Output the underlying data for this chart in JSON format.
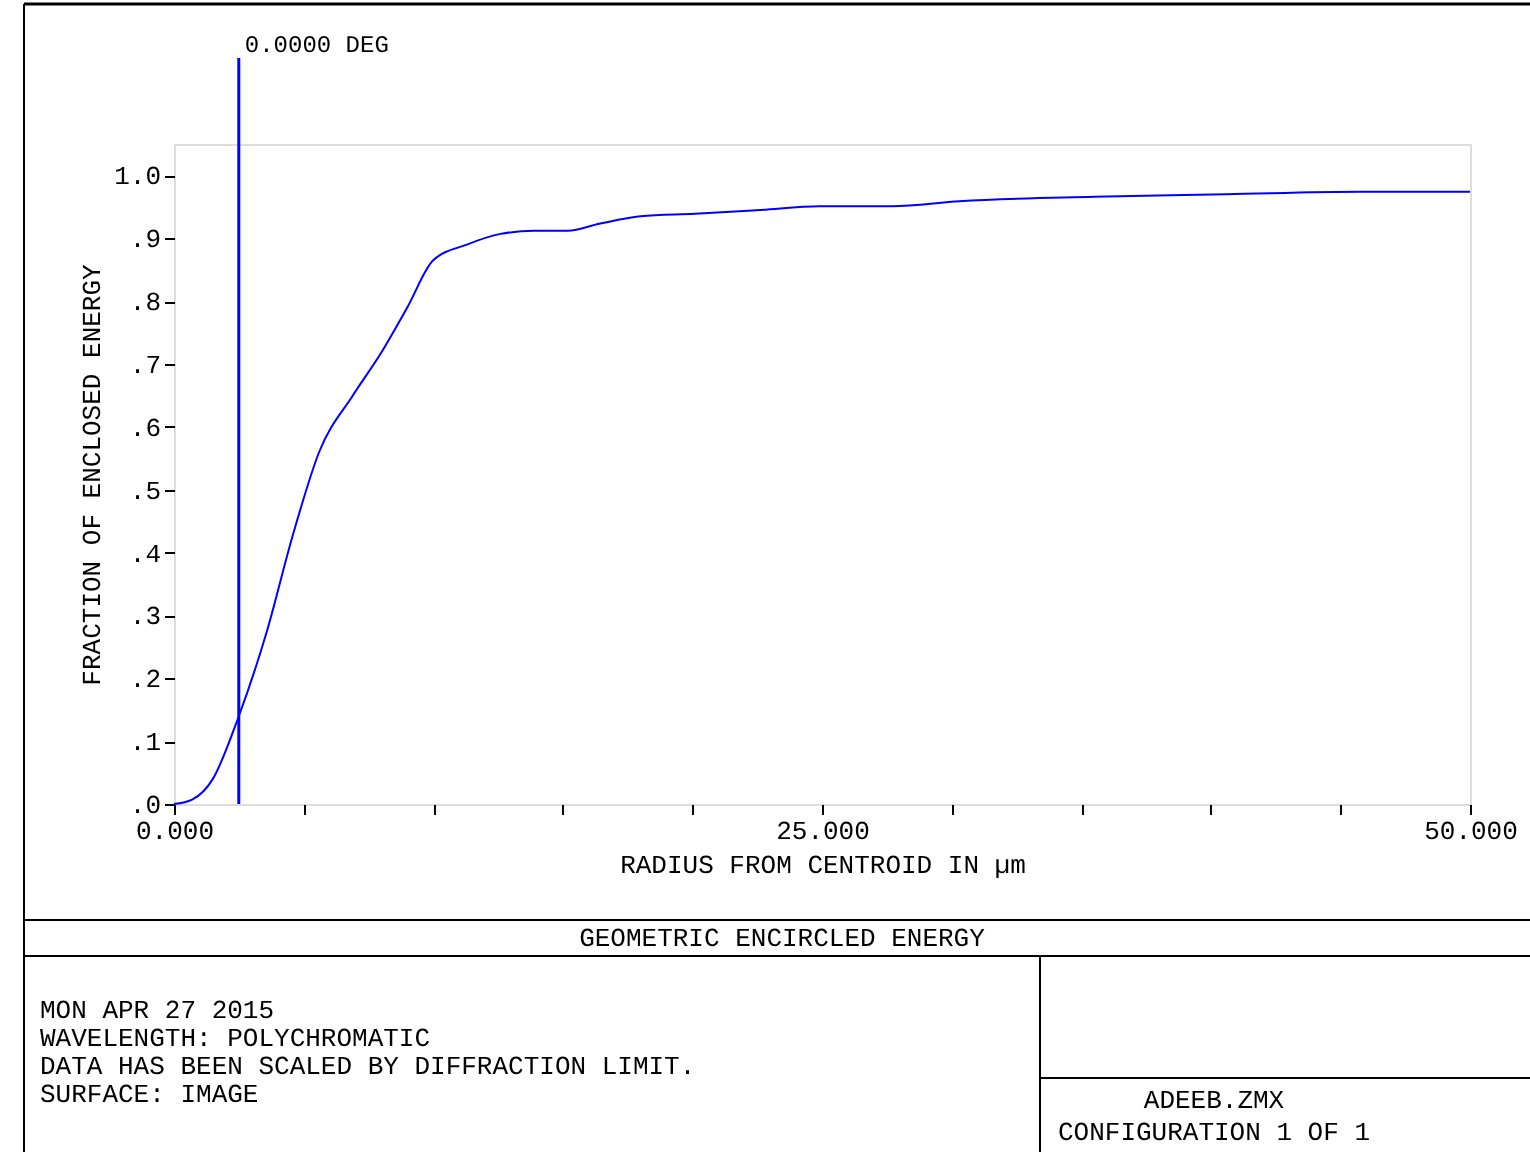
{
  "chart_data": {
    "type": "line",
    "title": "GEOMETRIC ENCIRCLED ENERGY",
    "xlabel": "RADIUS FROM CENTROID IN µm",
    "ylabel": "FRACTION OF ENCLOSED ENERGY",
    "x": [
      0,
      0.7,
      1.5,
      2.45,
      3.55,
      4.6,
      5.6,
      6.9,
      7.95,
      9.0,
      10.0,
      11.3,
      12.6,
      13.9,
      15.2,
      16.4,
      18.0,
      20.1,
      22.6,
      24.9,
      27.7,
      30.3,
      35.5,
      40.6,
      45.8,
      50.0
    ],
    "series": [
      {
        "color": "#0000ff",
        "values": [
          0,
          0.007,
          0.04,
          0.134,
          0.27,
          0.43,
          0.56,
          0.65,
          0.715,
          0.79,
          0.865,
          0.89,
          0.907,
          0.912,
          0.912,
          0.923,
          0.935,
          0.939,
          0.945,
          0.951,
          0.951,
          0.959,
          0.966,
          0.97,
          0.974,
          0.974
        ]
      }
    ],
    "xlim": [
      0,
      50
    ],
    "xticks": [
      {
        "value": 0,
        "label": "0.000"
      },
      {
        "value": 5,
        "label": null
      },
      {
        "value": 10,
        "label": null
      },
      {
        "value": 15,
        "label": null
      },
      {
        "value": 20,
        "label": null
      },
      {
        "value": 25,
        "label": "25.000"
      },
      {
        "value": 30,
        "label": null
      },
      {
        "value": 35,
        "label": null
      },
      {
        "value": 40,
        "label": null
      },
      {
        "value": 45,
        "label": null
      },
      {
        "value": 50,
        "label": "50.000"
      }
    ],
    "ylim": [
      0,
      1.05
    ],
    "yticks": [
      {
        "value": 0,
        "label": ".0"
      },
      {
        "value": 0.1,
        "label": ".1"
      },
      {
        "value": 0.2,
        "label": ".2"
      },
      {
        "value": 0.3,
        "label": ".3"
      },
      {
        "value": 0.4,
        "label": ".4"
      },
      {
        "value": 0.5,
        "label": ".5"
      },
      {
        "value": 0.6,
        "label": ".6"
      },
      {
        "value": 0.7,
        "label": ".7"
      },
      {
        "value": 0.8,
        "label": ".8"
      },
      {
        "value": 0.9,
        "label": ".9"
      },
      {
        "value": 1.0,
        "label": "1.0"
      }
    ],
    "ref_lines": [
      {
        "axis": "x",
        "value": 2.5,
        "label": "0.0000 DEG",
        "color": "#0000ff"
      }
    ],
    "annotations": [
      "MON APR 27 2015",
      "WAVELENGTH: POLYCHROMATIC",
      "DATA HAS BEEN SCALED BY DIFFRACTION LIMIT.",
      "SURFACE: IMAGE",
      "ADEEB.ZMX",
      "CONFIGURATION 1 OF 1"
    ],
    "grid": false,
    "marker": "none",
    "line_style": "solid"
  }
}
